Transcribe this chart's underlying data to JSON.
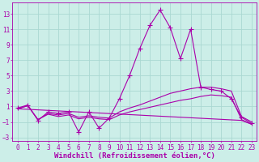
{
  "xlabel": "Windchill (Refroidissement éolien,°C)",
  "ylabel": "",
  "bg_color": "#cceee8",
  "grid_color": "#aad8d2",
  "line_color": "#aa00aa",
  "xlim": [
    -0.5,
    23.5
  ],
  "ylim": [
    -3.5,
    14.5
  ],
  "yticks": [
    -3,
    -1,
    1,
    3,
    5,
    7,
    9,
    11,
    13
  ],
  "xticks": [
    0,
    1,
    2,
    3,
    4,
    5,
    6,
    7,
    8,
    9,
    10,
    11,
    12,
    13,
    14,
    15,
    16,
    17,
    18,
    19,
    20,
    21,
    22,
    23
  ],
  "line1_x": [
    0,
    1,
    2,
    3,
    4,
    5,
    6,
    7,
    8,
    9,
    10,
    11,
    12,
    13,
    14,
    15,
    16,
    17,
    18,
    19,
    20,
    21,
    22,
    23
  ],
  "line1_y": [
    0.8,
    1.2,
    -0.8,
    0.3,
    0.1,
    0.3,
    -2.3,
    0.3,
    -1.8,
    -0.5,
    2.0,
    5.0,
    8.5,
    11.5,
    13.5,
    11.2,
    7.2,
    11.0,
    3.5,
    3.2,
    3.0,
    2.0,
    -0.4,
    -1.2
  ],
  "line2_x": [
    0,
    1,
    2,
    3,
    4,
    5,
    6,
    7,
    8,
    9,
    10,
    11,
    12,
    13,
    14,
    15,
    16,
    17,
    18,
    19,
    20,
    21,
    22,
    23
  ],
  "line2_y": [
    0.7,
    1.1,
    -0.7,
    0.1,
    -0.1,
    0.1,
    -0.4,
    -0.2,
    -0.4,
    -0.5,
    0.3,
    0.8,
    1.2,
    1.7,
    2.2,
    2.7,
    3.0,
    3.3,
    3.5,
    3.5,
    3.3,
    3.0,
    -0.3,
    -1.0
  ],
  "line3_x": [
    0,
    1,
    2,
    3,
    4,
    5,
    6,
    7,
    8,
    9,
    10,
    11,
    12,
    13,
    14,
    15,
    16,
    17,
    18,
    19,
    20,
    21,
    22,
    23
  ],
  "line3_y": [
    0.7,
    1.1,
    -0.7,
    0.0,
    -0.3,
    -0.1,
    -0.6,
    -0.4,
    -0.6,
    -0.7,
    -0.1,
    0.3,
    0.6,
    0.9,
    1.2,
    1.5,
    1.8,
    2.0,
    2.3,
    2.5,
    2.4,
    2.2,
    -0.7,
    -1.3
  ],
  "line4_x": [
    0,
    22,
    23
  ],
  "line4_y": [
    0.7,
    -0.8,
    -1.3
  ],
  "font_color": "#aa00aa",
  "tick_fontsize": 5.5,
  "label_fontsize": 6.5,
  "marker_size": 2.5,
  "line_width": 0.8
}
